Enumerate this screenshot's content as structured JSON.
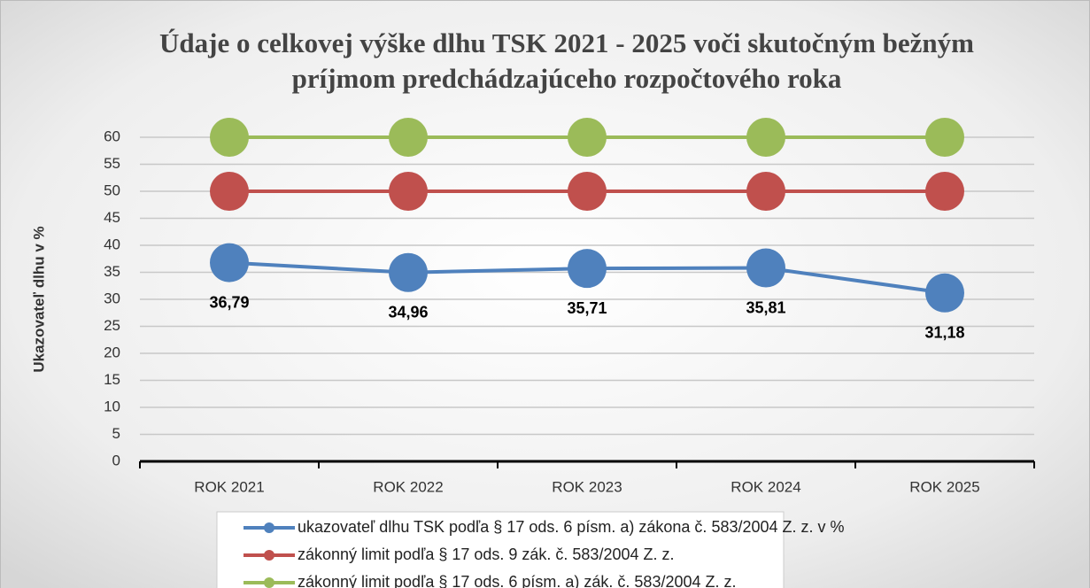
{
  "chart_data": {
    "type": "line",
    "title": [
      "Údaje o celkovej výške dlhu TSK 2021 - 2025 voči skutočným bežným",
      "príjmom predchádzajúceho rozpočtového roka"
    ],
    "y_label": "Ukazovateľ dlhu v %",
    "categories": [
      "ROK 2021",
      "ROK 2022",
      "ROK 2023",
      "ROK 2024",
      "ROK 2025"
    ],
    "series": [
      {
        "name": "ukazovateľ dlhu TSK podľa § 17 ods. 6 písm. a) zákona č. 583/2004 Z. z. v %",
        "color": "#4f81bd",
        "values": [
          36.79,
          34.96,
          35.71,
          35.81,
          31.18
        ],
        "value_labels": [
          "36,79",
          "34,96",
          "35,71",
          "35,81",
          "31,18"
        ]
      },
      {
        "name": "zákonný limit podľa § 17 ods. 9 zák. č. 583/2004 Z. z.",
        "color": "#c0504d",
        "values": [
          50,
          50,
          50,
          50,
          50
        ]
      },
      {
        "name": "zákonný limit podľa § 17 ods. 6 písm. a) zák. č. 583/2004 Z. z.",
        "color": "#9bbb59",
        "values": [
          60,
          60,
          60,
          60,
          60
        ]
      }
    ],
    "ylim": [
      0,
      60
    ],
    "yticks": [
      0,
      5,
      10,
      15,
      20,
      25,
      30,
      35,
      40,
      45,
      50,
      55,
      60
    ],
    "grid": true
  }
}
